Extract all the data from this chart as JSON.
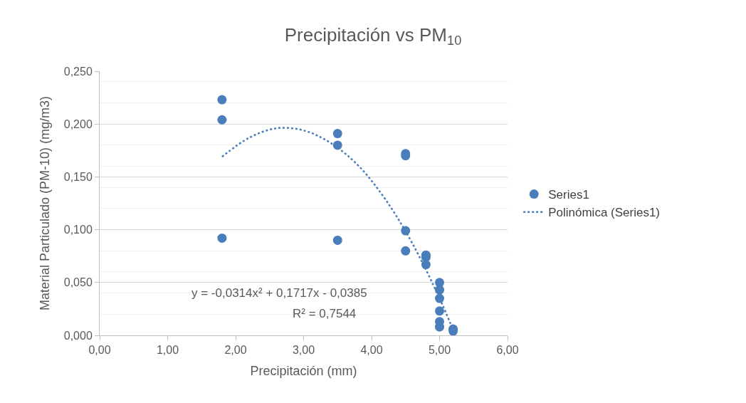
{
  "chart_data": {
    "type": "scatter",
    "title": "Precipitación vs PM$_{10}$",
    "xlabel": "Precipitación (mm)",
    "ylabel": "Material Particulado (PM-10) (mg/m3)",
    "annotations": [
      "y = -0,0314x² + 0,1717x - 0,0385",
      "R² = 0,7544"
    ],
    "series": [
      {
        "name": "Series1",
        "color": "#4a7ebb",
        "marker": "circle",
        "x": [
          1.8,
          1.8,
          1.8,
          3.5,
          3.5,
          3.5,
          4.5,
          4.5,
          4.5,
          4.5,
          4.8,
          4.8,
          4.8,
          5.0,
          5.0,
          5.0,
          5.0,
          5.0,
          5.0,
          5.2,
          5.2
        ],
        "values": [
          0.223,
          0.204,
          0.092,
          0.191,
          0.18,
          0.09,
          0.172,
          0.17,
          0.099,
          0.08,
          0.076,
          0.074,
          0.067,
          0.05,
          0.043,
          0.035,
          0.023,
          0.013,
          0.008,
          0.006,
          0.004
        ]
      },
      {
        "name": "Polinómica (Series1)",
        "type": "line",
        "color": "#4a7ebb",
        "line_style": "dotted",
        "marker": "none",
        "x": [
          1.8,
          2.2,
          2.6,
          3.0,
          3.4,
          3.8,
          4.2,
          4.6,
          5.0,
          5.2
        ],
        "values": [
          0.169,
          0.187,
          0.196,
          0.194,
          0.182,
          0.161,
          0.129,
          0.087,
          0.035,
          0.005
        ]
      }
    ],
    "xlim": [
      0,
      6
    ],
    "xticks": [
      {
        "value": 0,
        "label": "0,00"
      },
      {
        "value": 1,
        "label": "1,00"
      },
      {
        "value": 2,
        "label": "2,00"
      },
      {
        "value": 3,
        "label": "3,00"
      },
      {
        "value": 4,
        "label": "4,00"
      },
      {
        "value": 5,
        "label": "5,00"
      },
      {
        "value": 6,
        "label": "6,00"
      }
    ],
    "ylim": [
      0,
      0.25
    ],
    "yticks": [
      {
        "value": 0,
        "label": "0,000"
      },
      {
        "value": 0.05,
        "label": "0,050"
      },
      {
        "value": 0.1,
        "label": "0,100"
      },
      {
        "value": 0.15,
        "label": "0,150"
      },
      {
        "value": 0.2,
        "label": "0,200"
      },
      {
        "value": 0.25,
        "label": "0,250"
      }
    ],
    "grid": "y",
    "legend": "right"
  }
}
